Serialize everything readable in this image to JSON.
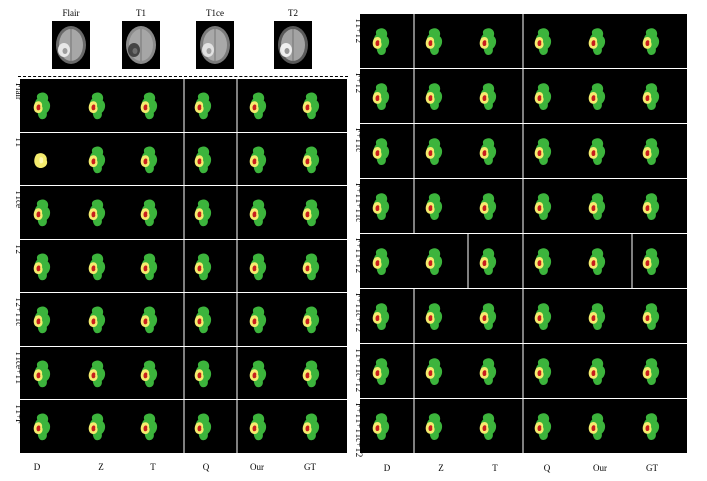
{
  "modalities": [
    {
      "label": "Flair",
      "icon": "brain-mri-flair"
    },
    {
      "label": "T1",
      "icon": "brain-mri-t1"
    },
    {
      "label": "T1ce",
      "icon": "brain-mri-t1ce"
    },
    {
      "label": "T2",
      "icon": "brain-mri-t2"
    }
  ],
  "left_panel": {
    "rows": [
      "Flair",
      "T1",
      "T1ce",
      "T2",
      "T2+T1c",
      "T1ce+T1",
      "T1+F"
    ],
    "columns": [
      "D",
      "Z",
      "T",
      "Q",
      "Our",
      "GT"
    ]
  },
  "right_panel": {
    "rows": [
      "T1+T2",
      "F+T2",
      "F+T1c",
      "F+T1+T1c",
      "F+T1+T2",
      "F+T1c+T2",
      "T1+T1c+T2",
      "F+T1+T1c+T2"
    ],
    "columns": [
      "D",
      "Z",
      "T",
      "Q",
      "Our",
      "GT"
    ]
  },
  "colors": {
    "edema": "#3cb43c",
    "enhancing": "#f5ec6e",
    "necrotic": "#c81e1e",
    "background": "#000000"
  }
}
